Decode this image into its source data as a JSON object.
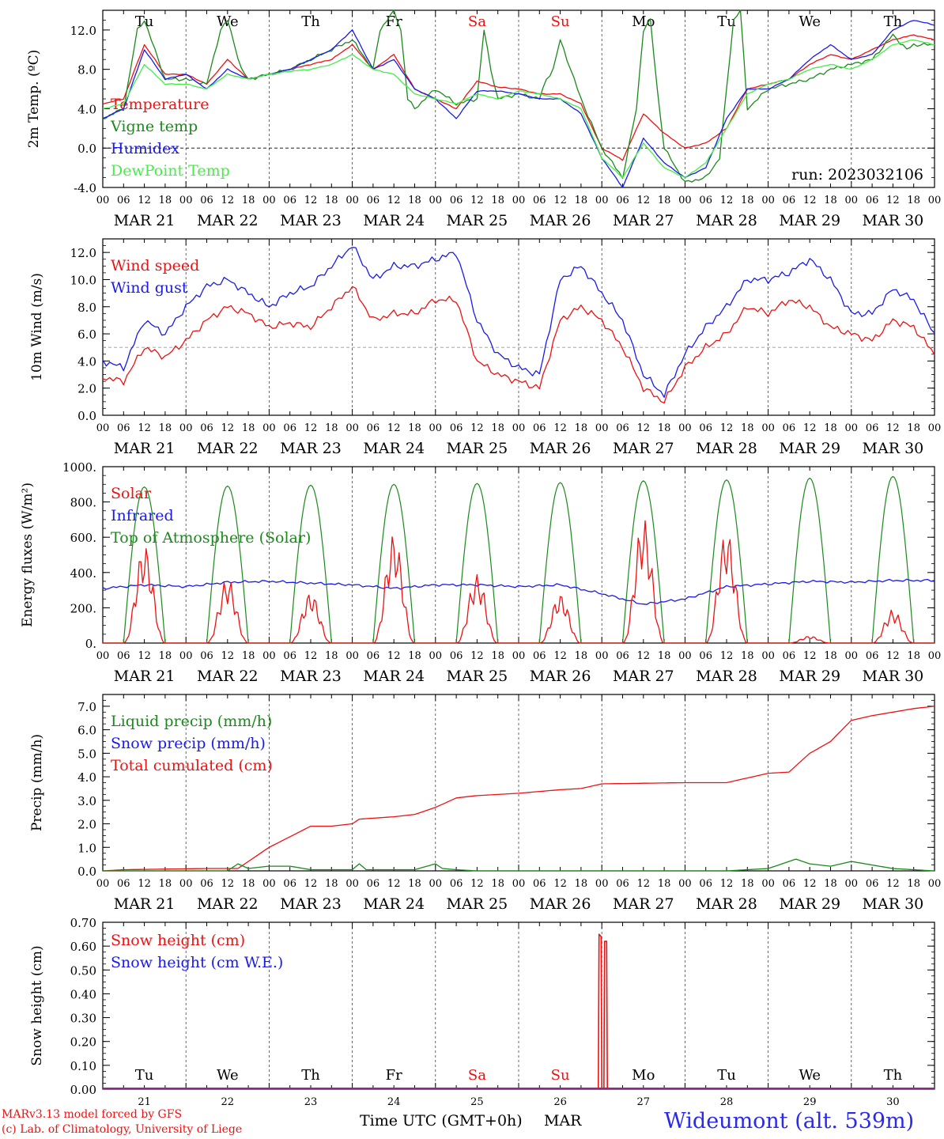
{
  "colors": {
    "red": "#ee1111",
    "green": "#1a8a1a",
    "blue": "#1a1aee",
    "lightgreen": "#44ee44",
    "weekend": "#ee1111",
    "site": "#2a2aee"
  },
  "x_axis": {
    "hour_ticks": [
      "00",
      "06",
      "12",
      "18"
    ],
    "dates": [
      "MAR 21",
      "MAR 22",
      "MAR 23",
      "MAR 24",
      "MAR 25",
      "MAR 26",
      "MAR 27",
      "MAR 28",
      "MAR 29",
      "MAR 30"
    ],
    "day_names": [
      "Tu",
      "We",
      "Th",
      "Fr",
      "Sa",
      "Su",
      "Mo",
      "Tu",
      "We",
      "Th"
    ],
    "day_numbers": [
      "21",
      "22",
      "23",
      "24",
      "25",
      "26",
      "27",
      "28",
      "29",
      "30"
    ],
    "weekend_days": [
      "Sa",
      "Su"
    ]
  },
  "run_label": "run: 2023032106",
  "footer": {
    "model": "MARv3.13 model forced by GFS",
    "credit": "(c) Lab. of Climatology, University of Liege",
    "axis_title": "Time UTC (GMT+0h)",
    "month": "MAR",
    "site": "Wideumont (alt. 539m)"
  },
  "chart_data": [
    {
      "type": "line",
      "ylabel": "2m Temp. (ºC)",
      "ylim": [
        -4,
        14
      ],
      "yticks": [
        "-4.0",
        "0.0",
        "4.0",
        "8.0",
        "12.0"
      ],
      "reference_line": 0,
      "x_unit": "hours since MAR 21 00 UTC",
      "legend": [
        "Temperature",
        "Vigne temp",
        "Humidex",
        "DewPoint Temp"
      ],
      "series": [
        {
          "name": "Temperature",
          "color": "red",
          "x": [
            0,
            6,
            12,
            18,
            24,
            30,
            36,
            42,
            48,
            54,
            60,
            66,
            72,
            78,
            84,
            90,
            96,
            102,
            108,
            114,
            120,
            126,
            132,
            138,
            144,
            150,
            156,
            162,
            168,
            174,
            180,
            186,
            192,
            198,
            204,
            210,
            216,
            222,
            228,
            234,
            240
          ],
          "y": [
            4.5,
            5,
            10.5,
            7.5,
            7.5,
            6.5,
            9,
            7,
            7.5,
            8,
            8.5,
            9,
            10.5,
            8,
            9.5,
            6,
            5,
            4,
            6.8,
            6.2,
            6,
            5.5,
            5.5,
            4.5,
            0,
            -1.2,
            3.5,
            1.5,
            0,
            0.5,
            2,
            6,
            6.5,
            7,
            8.5,
            9.5,
            9,
            10,
            11,
            11.5,
            11
          ]
        },
        {
          "name": "Vigne temp",
          "color": "green",
          "x": [
            0,
            6,
            10,
            12,
            14,
            18,
            24,
            30,
            34,
            36,
            40,
            42,
            48,
            54,
            60,
            66,
            72,
            78,
            80,
            82,
            84,
            86,
            88,
            90,
            96,
            102,
            108,
            110,
            112,
            114,
            120,
            126,
            128,
            130,
            132,
            138,
            144,
            150,
            154,
            156,
            158,
            160,
            162,
            168,
            174,
            178,
            180,
            182,
            184,
            186,
            192,
            198,
            204,
            210,
            216,
            222,
            228,
            232,
            234,
            240
          ],
          "y": [
            3,
            4,
            12,
            13,
            11,
            7,
            7,
            6.5,
            12,
            13,
            8,
            7,
            7.5,
            8,
            9,
            10,
            11,
            8,
            12,
            13,
            14,
            12,
            5,
            4,
            6,
            4.5,
            5,
            12,
            8,
            5,
            5.5,
            5,
            7,
            8,
            11,
            5,
            0,
            -3,
            4,
            12,
            13,
            6,
            0,
            -3.5,
            -3,
            -1,
            6,
            13,
            14,
            4,
            6,
            6.5,
            7,
            8,
            8.5,
            9,
            11.5,
            10,
            10.5,
            10.5
          ]
        },
        {
          "name": "Humidex",
          "color": "blue",
          "x": [
            0,
            6,
            12,
            18,
            24,
            30,
            36,
            42,
            48,
            54,
            60,
            66,
            72,
            78,
            84,
            90,
            96,
            102,
            108,
            114,
            120,
            126,
            132,
            138,
            144,
            150,
            156,
            162,
            168,
            174,
            180,
            186,
            192,
            198,
            204,
            210,
            216,
            222,
            228,
            234,
            240
          ],
          "y": [
            3,
            4,
            10,
            7,
            7.5,
            6,
            8,
            7,
            7.5,
            8,
            9,
            10,
            12,
            8,
            9,
            6,
            5,
            3,
            5.8,
            5.8,
            5.5,
            5,
            5,
            3.5,
            -1,
            -4,
            1,
            -1.5,
            -3,
            -2,
            3,
            6,
            6,
            7,
            9,
            10.5,
            9,
            9.5,
            12,
            13,
            12.5
          ]
        },
        {
          "name": "DewPoint Temp",
          "color": "lightgreen",
          "x": [
            0,
            6,
            12,
            18,
            24,
            30,
            36,
            42,
            48,
            54,
            60,
            66,
            72,
            78,
            84,
            90,
            96,
            102,
            108,
            114,
            120,
            126,
            132,
            138,
            144,
            150,
            156,
            162,
            168,
            174,
            180,
            186,
            192,
            198,
            204,
            210,
            216,
            222,
            228,
            234,
            240
          ],
          "y": [
            4,
            4.5,
            8.5,
            6.5,
            6.5,
            6,
            7.5,
            7,
            7.5,
            7.8,
            8,
            8.5,
            9.5,
            8,
            7.5,
            5.5,
            5,
            4.5,
            5.5,
            5,
            5.8,
            5.5,
            5,
            4,
            -1,
            -3,
            0.5,
            -2,
            -3,
            -1.5,
            2,
            5.5,
            6.5,
            7,
            8,
            8.5,
            8,
            9,
            10.5,
            11,
            10.5
          ]
        }
      ]
    },
    {
      "type": "line",
      "ylabel": "10m Wind (m/s)",
      "ylim": [
        0,
        13
      ],
      "yticks": [
        "0.0",
        "2.0",
        "4.0",
        "6.0",
        "8.0",
        "10.0",
        "12.0"
      ],
      "reference_line": 5,
      "x_unit": "hours since MAR 21 00 UTC",
      "legend": [
        "Wind speed",
        "Wind gust"
      ],
      "series": [
        {
          "name": "Wind speed",
          "color": "red",
          "x": [
            0,
            6,
            12,
            18,
            24,
            30,
            36,
            42,
            48,
            54,
            60,
            66,
            72,
            78,
            84,
            90,
            96,
            102,
            108,
            114,
            120,
            126,
            132,
            138,
            144,
            150,
            156,
            162,
            168,
            174,
            180,
            186,
            192,
            198,
            204,
            210,
            216,
            222,
            228,
            234,
            240
          ],
          "y": [
            2.8,
            2.5,
            5,
            4.3,
            5.5,
            7,
            8,
            7.5,
            6.5,
            6.8,
            6.5,
            8,
            9.5,
            7,
            7.5,
            7.5,
            8.5,
            8.5,
            4,
            3,
            2.5,
            2,
            7,
            8,
            7,
            5,
            2,
            1,
            3.5,
            5,
            6,
            8,
            7.5,
            8.5,
            8,
            6.5,
            6,
            5.5,
            7,
            6.5,
            4.5
          ]
        },
        {
          "name": "Wind gust",
          "color": "blue",
          "x": [
            0,
            6,
            12,
            18,
            24,
            30,
            36,
            42,
            48,
            54,
            60,
            66,
            72,
            78,
            84,
            90,
            96,
            102,
            108,
            114,
            120,
            126,
            132,
            138,
            144,
            150,
            156,
            162,
            168,
            174,
            180,
            186,
            192,
            198,
            204,
            210,
            216,
            222,
            228,
            234,
            240
          ],
          "y": [
            4,
            3.5,
            7,
            6,
            8,
            9.5,
            10,
            9,
            8,
            9,
            9.5,
            11,
            12.5,
            10,
            11,
            11,
            11.5,
            12,
            7,
            4.5,
            3.5,
            3,
            10,
            11,
            9,
            7,
            3,
            1.5,
            4.5,
            6.5,
            8,
            10,
            10,
            10.5,
            11.5,
            10,
            7.5,
            7.5,
            9.3,
            8.5,
            6
          ]
        }
      ]
    },
    {
      "type": "line",
      "ylabel": "Energy fluxes (W/m²)",
      "ylim": [
        0,
        1000
      ],
      "yticks": [
        "0.",
        "200.",
        "400.",
        "600.",
        "800.",
        "1000."
      ],
      "x_unit": "hours since MAR 21 00 UTC",
      "legend": [
        "Solar",
        "Infrared",
        "Top of Atmosphere (Solar)"
      ],
      "toa_daily_peak": [
        885,
        890,
        895,
        900,
        905,
        910,
        920,
        925,
        935,
        945
      ],
      "solar_daily_peak": [
        560,
        370,
        290,
        620,
        390,
        280,
        710,
        640,
        40,
        190
      ],
      "series": [
        {
          "name": "Infrared",
          "color": "blue",
          "x": [
            0,
            12,
            24,
            36,
            48,
            60,
            72,
            84,
            96,
            108,
            120,
            132,
            144,
            156,
            168,
            180,
            192,
            204,
            216,
            228,
            240
          ],
          "y": [
            310,
            330,
            320,
            345,
            350,
            340,
            330,
            310,
            330,
            330,
            320,
            330,
            280,
            220,
            250,
            320,
            335,
            350,
            345,
            355,
            355
          ]
        }
      ]
    },
    {
      "type": "line",
      "ylabel": "Precip (mm/h)",
      "ylim": [
        0,
        7.5
      ],
      "yticks": [
        "0.0",
        "1.0",
        "2.0",
        "3.0",
        "4.0",
        "5.0",
        "6.0",
        "7.0"
      ],
      "x_unit": "hours since MAR 21 00 UTC",
      "legend": [
        "Liquid precip (mm/h)",
        "Snow precip (mm/h)",
        "Total cumulated (cm)"
      ],
      "series": [
        {
          "name": "Total cumulated (cm)",
          "color": "red",
          "x": [
            0,
            6,
            30,
            39,
            48,
            60,
            66,
            72,
            74,
            84,
            90,
            96,
            102,
            108,
            120,
            132,
            138,
            144,
            168,
            180,
            192,
            198,
            204,
            210,
            216,
            222,
            234,
            240
          ],
          "y": [
            0,
            0.05,
            0.1,
            0.1,
            1,
            1.9,
            1.9,
            2,
            2.2,
            2.3,
            2.4,
            2.7,
            3.1,
            3.2,
            3.3,
            3.45,
            3.5,
            3.7,
            3.75,
            3.75,
            4.15,
            4.2,
            5,
            5.5,
            6.4,
            6.6,
            6.9,
            7
          ]
        },
        {
          "name": "Liquid precip (mm/h)",
          "color": "green",
          "x": [
            0,
            36,
            39,
            42,
            48,
            54,
            60,
            72,
            74,
            76,
            90,
            96,
            98,
            102,
            108,
            144,
            180,
            192,
            198,
            200,
            204,
            210,
            216,
            220,
            228,
            240
          ],
          "y": [
            0,
            0,
            0.3,
            0.1,
            0.2,
            0.2,
            0.05,
            0.05,
            0.3,
            0.05,
            0.05,
            0.3,
            0.1,
            0.05,
            0,
            0,
            0,
            0.1,
            0.4,
            0.5,
            0.3,
            0.2,
            0.4,
            0.3,
            0.1,
            0
          ]
        }
      ]
    },
    {
      "type": "line",
      "ylabel": "Snow height (cm)",
      "ylim": [
        0,
        0.7
      ],
      "yticks": [
        "0.00",
        "0.10",
        "0.20",
        "0.30",
        "0.40",
        "0.50",
        "0.60",
        "0.70"
      ],
      "x_unit": "hours since MAR 21 00 UTC",
      "legend": [
        "Snow height (cm)",
        "Snow height (cm W.E.)"
      ],
      "series": [
        {
          "name": "Snow height (cm)",
          "color": "red",
          "x": [
            0,
            143,
            143.2,
            143.8,
            144,
            144.6,
            144.8,
            145.4,
            145.6,
            240
          ],
          "y": [
            0,
            0,
            0.65,
            0.64,
            0,
            0,
            0.62,
            0.62,
            0,
            0
          ]
        }
      ]
    }
  ]
}
